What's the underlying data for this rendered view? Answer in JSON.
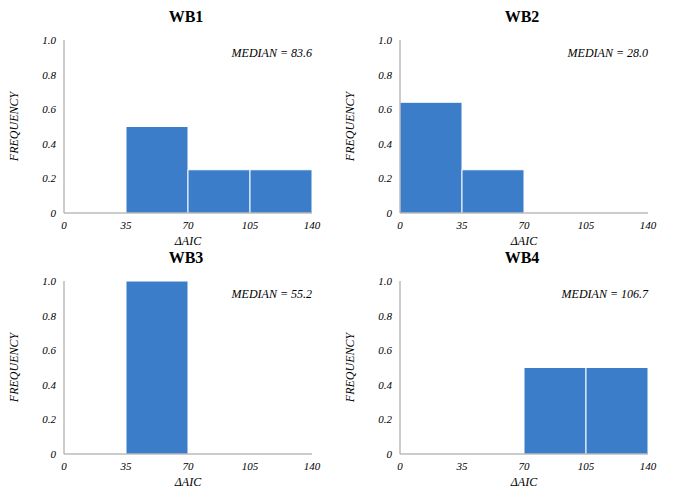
{
  "chart_data": [
    {
      "type": "histogram",
      "title": "WB1",
      "annotation": "MEDIAN = 83.6",
      "x_label": "ΔAIC",
      "y_label": "FREQUENCY",
      "bins": [
        0,
        35,
        70,
        105,
        140
      ],
      "counts": [
        0,
        0.5,
        0.25,
        0.25
      ],
      "color": "#3b7dc8",
      "xlim": [
        0,
        140
      ],
      "ylim": [
        0,
        1
      ],
      "xticks": [
        0,
        35,
        70,
        105,
        140
      ],
      "yticks": [
        0,
        0.2,
        0.4,
        0.6,
        0.8,
        {
          "value": 1,
          "label": "1.0"
        }
      ],
      "grid": false
    },
    {
      "type": "histogram",
      "title": "WB2",
      "annotation": "MEDIAN = 28.0",
      "x_label": "ΔAIC",
      "y_label": "FREQUENCY",
      "bins": [
        0,
        35,
        70,
        105,
        140
      ],
      "counts": [
        0.64,
        0.25,
        0,
        0
      ],
      "color": "#3b7dc8",
      "xlim": [
        0,
        140
      ],
      "ylim": [
        0,
        1
      ],
      "xticks": [
        0,
        35,
        70,
        105,
        140
      ],
      "yticks": [
        0,
        0.2,
        0.4,
        0.6,
        0.8,
        {
          "value": 1,
          "label": "1.0"
        }
      ],
      "grid": false
    },
    {
      "type": "histogram",
      "title": "WB3",
      "annotation": "MEDIAN = 55.2",
      "x_label": "ΔAIC",
      "y_label": "FREQUENCY",
      "bins": [
        0,
        35,
        70,
        105,
        140
      ],
      "counts": [
        0,
        1,
        0,
        0
      ],
      "color": "#3b7dc8",
      "xlim": [
        0,
        140
      ],
      "ylim": [
        0,
        1
      ],
      "xticks": [
        0,
        35,
        70,
        105,
        140
      ],
      "yticks": [
        0,
        0.2,
        0.4,
        0.6,
        0.8,
        {
          "value": 1,
          "label": "1.0"
        }
      ],
      "grid": false
    },
    {
      "type": "histogram",
      "title": "WB4",
      "annotation": "MEDIAN = 106.7",
      "x_label": "ΔAIC",
      "y_label": "FREQUENCY",
      "bins": [
        0,
        35,
        70,
        105,
        140
      ],
      "counts": [
        0,
        0,
        0.5,
        0.5
      ],
      "color": "#3b7dc8",
      "xlim": [
        0,
        140
      ],
      "ylim": [
        0,
        1
      ],
      "xticks": [
        0,
        35,
        70,
        105,
        140
      ],
      "yticks": [
        0,
        0.2,
        0.4,
        0.6,
        0.8,
        {
          "value": 1,
          "label": "1.0"
        }
      ],
      "grid": false
    }
  ]
}
